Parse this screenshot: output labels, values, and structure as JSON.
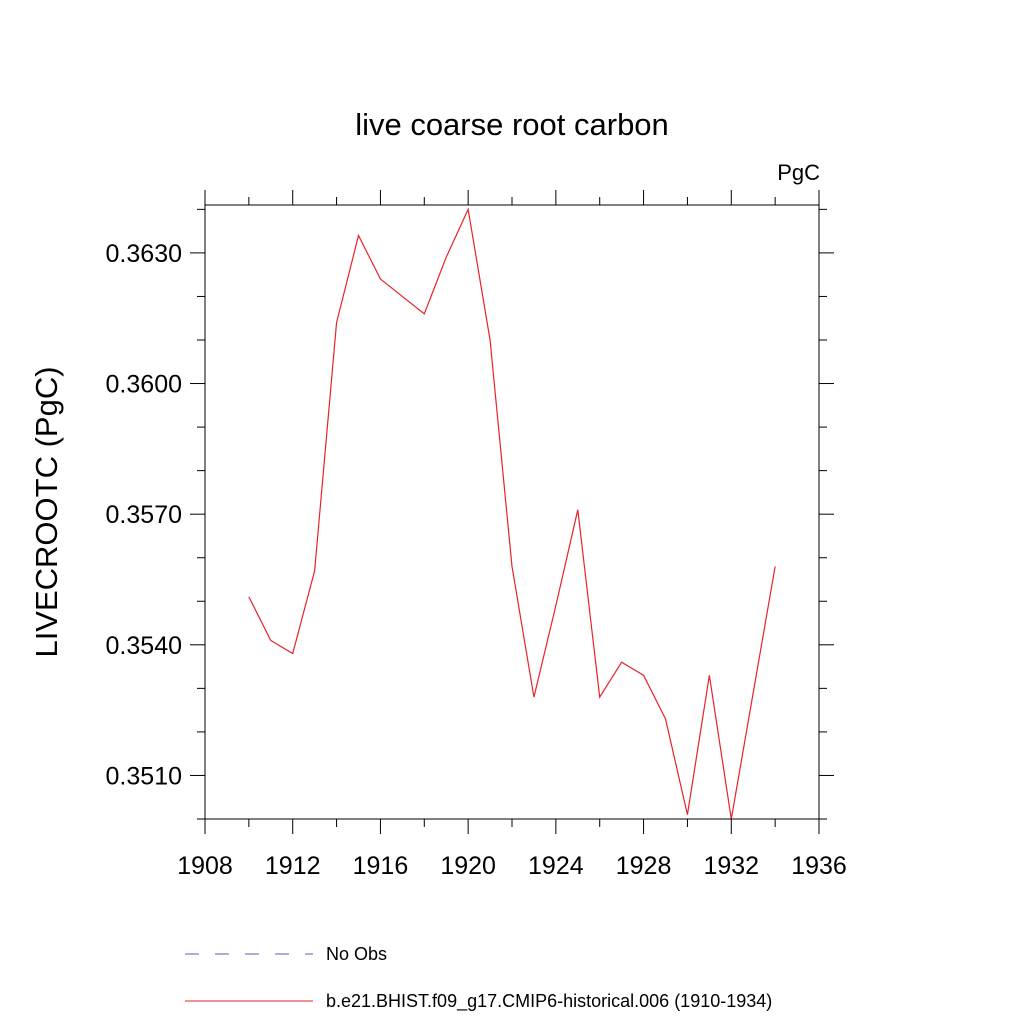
{
  "chart_data": {
    "type": "line",
    "title": "live coarse root carbon",
    "units_label": "PgC",
    "ylabel": "LIVECROOTC  (PgC)",
    "xlabel": "",
    "xlim": [
      1908,
      1936
    ],
    "ylim": [
      0.35,
      0.3641
    ],
    "x_ticks": [
      1908,
      1912,
      1916,
      1920,
      1924,
      1928,
      1932,
      1936
    ],
    "x_minor_step": 2,
    "y_ticks": [
      0.351,
      0.354,
      0.357,
      0.36,
      0.363
    ],
    "y_tick_labels": [
      "0.3510",
      "0.3540",
      "0.3570",
      "0.3600",
      "0.3630"
    ],
    "y_minor_step": 0.001,
    "grid": false,
    "legend_position": "bottom",
    "series": [
      {
        "name": "No Obs",
        "color": "#5b5bb4",
        "dash": true,
        "x": [],
        "values": []
      },
      {
        "name": "b.e21.BHIST.f09_g17.CMIP6-historical.006 (1910-1934)",
        "color": "#e8222a",
        "dash": false,
        "x": [
          1910,
          1911,
          1912,
          1913,
          1914,
          1915,
          1916,
          1917,
          1918,
          1919,
          1920,
          1921,
          1922,
          1923,
          1924,
          1925,
          1926,
          1927,
          1928,
          1929,
          1930,
          1931,
          1932,
          1933,
          1934
        ],
        "values": [
          0.3551,
          0.3541,
          0.3538,
          0.3557,
          0.3614,
          0.3634,
          0.3624,
          0.362,
          0.3616,
          0.3629,
          0.364,
          0.361,
          0.3558,
          0.3528,
          0.3549,
          0.3571,
          0.3528,
          0.3536,
          0.3533,
          0.3523,
          0.3501,
          0.3533,
          0.35,
          0.3529,
          0.3558
        ]
      }
    ]
  }
}
